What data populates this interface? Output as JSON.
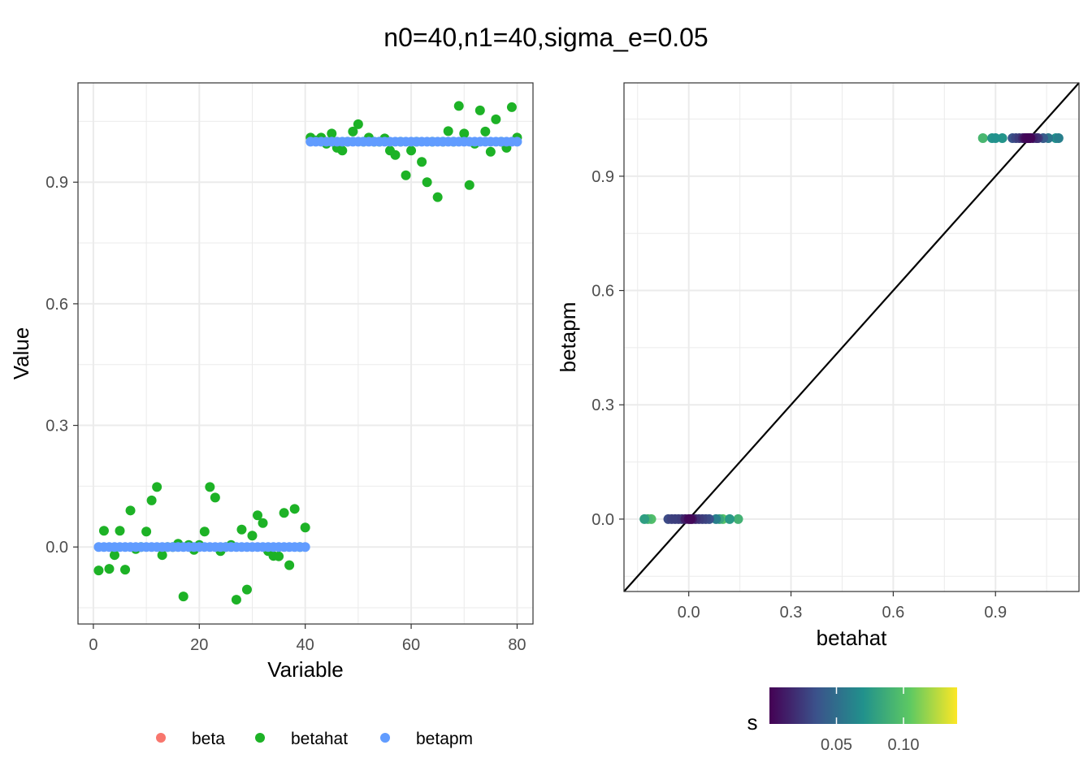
{
  "title": "n0=40,n1=40,sigma_e=0.05",
  "colors": {
    "beta": "#F8766D",
    "betahat": "#1DB226",
    "betapm": "#619CFF"
  },
  "chart_data": [
    {
      "type": "scatter",
      "name": "left-panel",
      "xlabel": "Variable",
      "ylabel": "Value",
      "xlim": [
        -2.9,
        83.0
      ],
      "ylim": [
        -0.19,
        1.145
      ],
      "xticks": [
        0,
        20,
        40,
        60,
        80
      ],
      "xtick_labels": [
        "0",
        "20",
        "40",
        "60",
        "80"
      ],
      "yticks": [
        0.0,
        0.3,
        0.6,
        0.9
      ],
      "ytick_labels": [
        "0.0",
        "0.3",
        "0.6",
        "0.9"
      ],
      "grid": true,
      "legend": {
        "position": "bottom",
        "entries": [
          "beta",
          "betahat",
          "betapm"
        ]
      },
      "series": [
        {
          "name": "betahat",
          "x": [
            1,
            2,
            3,
            4,
            5,
            6,
            7,
            8,
            9,
            10,
            11,
            12,
            13,
            14,
            15,
            16,
            17,
            18,
            19,
            20,
            21,
            22,
            23,
            24,
            25,
            26,
            27,
            28,
            29,
            30,
            31,
            32,
            33,
            34,
            35,
            36,
            37,
            38,
            39,
            40,
            41,
            42,
            43,
            44,
            45,
            46,
            47,
            48,
            49,
            50,
            51,
            52,
            53,
            54,
            55,
            56,
            57,
            58,
            59,
            60,
            61,
            62,
            63,
            64,
            65,
            66,
            67,
            68,
            69,
            70,
            71,
            72,
            73,
            74,
            75,
            76,
            77,
            78,
            79,
            80
          ],
          "values": [
            -0.058,
            0.04,
            -0.054,
            -0.02,
            0.04,
            -0.056,
            0.09,
            -0.005,
            0.0,
            0.038,
            0.115,
            0.148,
            -0.02,
            0.0,
            0.0,
            0.008,
            -0.122,
            0.005,
            -0.007,
            0.005,
            0.038,
            0.148,
            0.122,
            -0.01,
            0.0,
            0.005,
            -0.13,
            0.043,
            -0.105,
            0.028,
            0.078,
            0.059,
            -0.01,
            -0.022,
            -0.023,
            0.084,
            -0.045,
            0.094,
            0.0,
            0.048,
            1.01,
            1.003,
            1.01,
            0.995,
            1.02,
            0.985,
            0.978,
            1.0,
            1.025,
            1.043,
            1.0,
            1.01,
            1.0,
            1.0,
            1.008,
            0.978,
            0.967,
            1.0,
            0.917,
            0.978,
            1.0,
            0.95,
            0.9,
            1.0,
            0.863,
            1.0,
            1.026,
            1.0,
            1.088,
            1.02,
            0.893,
            0.995,
            1.077,
            1.025,
            0.975,
            1.055,
            1.0,
            0.985,
            1.085,
            1.01
          ]
        },
        {
          "name": "betapm",
          "x_range": [
            1,
            80
          ],
          "values_first_40": 0.0,
          "values_last_40": 1.0
        }
      ]
    },
    {
      "type": "scatter",
      "name": "right-panel",
      "xlabel": "betahat",
      "ylabel": "betapm",
      "xlim": [
        -0.19,
        1.145
      ],
      "ylim": [
        -0.19,
        1.145
      ],
      "xticks": [
        0.0,
        0.3,
        0.6,
        0.9
      ],
      "xtick_labels": [
        "0.0",
        "0.3",
        "0.6",
        "0.9"
      ],
      "yticks": [
        0.0,
        0.3,
        0.6,
        0.9
      ],
      "ytick_labels": [
        "0.0",
        "0.3",
        "0.6",
        "0.9"
      ],
      "grid": true,
      "reference_line": "y = x",
      "colorbar": {
        "title": "s",
        "range": [
          0.0,
          0.14
        ],
        "ticks": [
          0.05,
          0.1
        ],
        "tick_labels": [
          "0.05",
          "0.10"
        ],
        "palette": [
          "#440154",
          "#3b528b",
          "#21918c",
          "#5ec962",
          "#fde725"
        ]
      },
      "points_near_zero": {
        "betahat": [
          -0.13,
          -0.12,
          -0.11,
          -0.06,
          -0.05,
          -0.04,
          -0.03,
          -0.02,
          -0.01,
          0.0,
          0.005,
          0.01,
          0.02,
          0.03,
          0.04,
          0.05,
          0.06,
          0.08,
          0.09,
          0.1,
          0.12,
          0.145
        ],
        "s": [
          0.078,
          0.093,
          0.098,
          0.032,
          0.028,
          0.027,
          0.027,
          0.025,
          0.013,
          0.004,
          0.003,
          0.01,
          0.02,
          0.025,
          0.028,
          0.031,
          0.035,
          0.06,
          0.083,
          0.1,
          0.075,
          0.09
        ],
        "betapm": 0.0
      },
      "points_near_one": {
        "betahat": [
          0.863,
          0.89,
          0.9,
          0.92,
          0.95,
          0.96,
          0.97,
          0.98,
          0.985,
          0.99,
          0.995,
          1.0,
          1.003,
          1.01,
          1.02,
          1.025,
          1.04,
          1.055,
          1.077,
          1.085
        ],
        "s": [
          0.093,
          0.072,
          0.07,
          0.072,
          0.036,
          0.03,
          0.025,
          0.018,
          0.01,
          0.004,
          0.003,
          0.002,
          0.004,
          0.015,
          0.02,
          0.025,
          0.04,
          0.055,
          0.07,
          0.06
        ],
        "betapm": 1.0
      }
    }
  ]
}
